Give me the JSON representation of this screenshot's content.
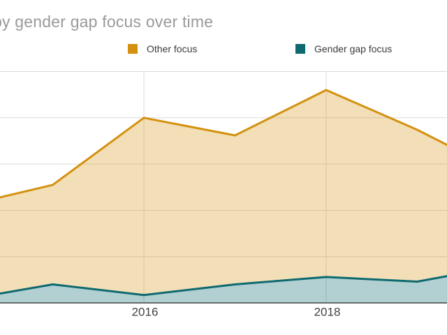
{
  "title": "by gender gap focus over time",
  "legend": {
    "position": "top",
    "items": [
      {
        "label": "Other focus",
        "color": "#D3910F"
      },
      {
        "label": "Gender gap focus",
        "color": "#0E6A70"
      }
    ]
  },
  "chart_data": {
    "type": "area",
    "stacked": true,
    "title": "by gender gap focus over time",
    "xlabel": "",
    "ylabel": "",
    "grid": true,
    "gridline_color": "#DADADA",
    "axis_color": "#424242",
    "x_ticks": [
      {
        "label": "2016",
        "year": 2016
      },
      {
        "label": "2018",
        "year": 2018
      }
    ],
    "x_visible_year_range": [
      2014.42,
      2019.33
    ],
    "ylim_units": [
      0,
      5
    ],
    "y_axis_labels_visible": false,
    "series": [
      {
        "name": "Other focus",
        "color": "#D3910F",
        "fill_opacity": 0.3,
        "points_year_units": [
          [
            2014.42,
            2.28
          ],
          [
            2015,
            2.55
          ],
          [
            2016,
            4.0
          ],
          [
            2017,
            3.62
          ],
          [
            2018,
            4.6
          ],
          [
            2019,
            3.74
          ],
          [
            2019.33,
            3.41
          ]
        ]
      },
      {
        "name": "Gender gap focus",
        "color": "#0E6A70",
        "fill_opacity": 0.32,
        "points_year_units": [
          [
            2014.42,
            0.2
          ],
          [
            2015,
            0.4
          ],
          [
            2016,
            0.17
          ],
          [
            2017,
            0.4
          ],
          [
            2018,
            0.56
          ],
          [
            2019,
            0.46
          ],
          [
            2019.33,
            0.58
          ]
        ]
      }
    ]
  }
}
